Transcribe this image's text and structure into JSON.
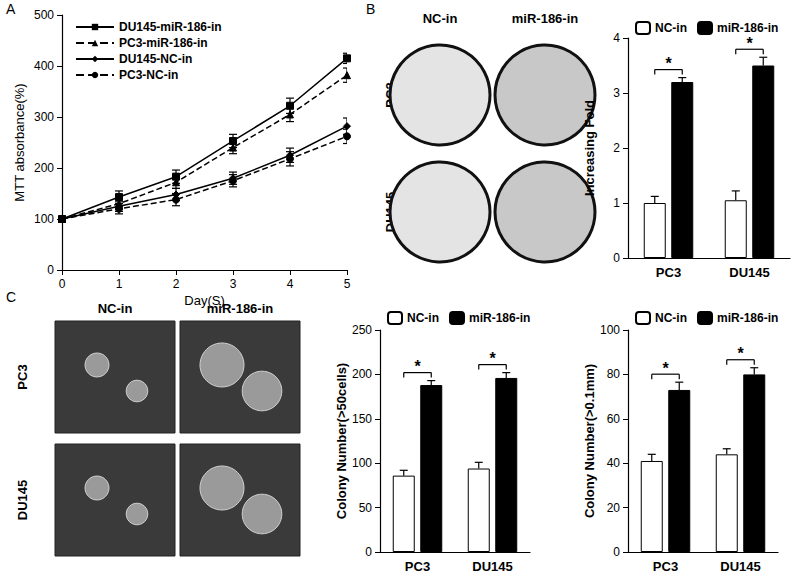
{
  "panel_labels": [
    "A",
    "B",
    "C"
  ],
  "image_panels": [
    {
      "column_labels": [
        "NC-in",
        "miR-186-in"
      ],
      "row_labels": [
        "PC3",
        "DU145"
      ]
    },
    {
      "column_labels": [
        "NC-in",
        "miR-186-in"
      ],
      "row_labels": [
        "PC3",
        "DU145"
      ]
    }
  ],
  "chart_data": [
    {
      "type": "line",
      "x_label": "Day(S)",
      "y_label": "MTT absorbance(%)",
      "x": [
        0,
        1,
        2,
        3,
        4,
        5
      ],
      "xlim": [
        0,
        5
      ],
      "xticks": [
        0,
        1,
        2,
        3,
        4,
        5
      ],
      "ylim": [
        0,
        500
      ],
      "yticks": [
        0,
        100,
        200,
        300,
        400,
        500
      ],
      "grid": false,
      "legend": "upper left",
      "series": [
        {
          "name": "DU145-miR-186-in",
          "color": "#000000",
          "marker": "square",
          "line_style": "solid",
          "values": [
            100,
            143,
            183,
            253,
            322,
            415
          ],
          "errors": [
            5,
            12,
            13,
            13,
            15,
            10
          ]
        },
        {
          "name": "PC3-miR-186-in",
          "color": "#000000",
          "marker": "triangle",
          "line_style": "dashed",
          "values": [
            100,
            130,
            172,
            240,
            305,
            382
          ],
          "errors": [
            5,
            10,
            12,
            12,
            14,
            14
          ]
        },
        {
          "name": "DU145-NC-in",
          "color": "#000000",
          "marker": "diamond",
          "line_style": "solid",
          "values": [
            100,
            125,
            148,
            180,
            225,
            282
          ],
          "errors": [
            5,
            10,
            12,
            12,
            14,
            16
          ]
        },
        {
          "name": "PC3-NC-in",
          "color": "#000000",
          "marker": "circle",
          "line_style": "dashed",
          "values": [
            100,
            120,
            138,
            175,
            218,
            262
          ],
          "errors": [
            5,
            10,
            12,
            12,
            14,
            14
          ]
        }
      ]
    },
    {
      "type": "bar",
      "y_label": "Increasing Fold",
      "categories": [
        "PC3",
        "DU145"
      ],
      "ylim": [
        0,
        4
      ],
      "yticks": [
        0,
        1,
        2,
        3,
        4
      ],
      "grid": false,
      "legend": "top",
      "significance": [
        "*",
        "*"
      ],
      "series": [
        {
          "name": "NC-in",
          "color": "#ffffff",
          "values": [
            1.0,
            1.05
          ],
          "errors": [
            0.12,
            0.17
          ]
        },
        {
          "name": "miR-186-in",
          "color": "#000000",
          "values": [
            3.2,
            3.5
          ],
          "errors": [
            0.08,
            0.15
          ]
        }
      ]
    },
    {
      "type": "bar",
      "y_label": "Colony Number(>50cells)",
      "categories": [
        "PC3",
        "DU145"
      ],
      "ylim": [
        0,
        250
      ],
      "yticks": [
        0,
        50,
        100,
        150,
        200,
        250
      ],
      "grid": false,
      "legend": "top",
      "significance": [
        "*",
        "*"
      ],
      "series": [
        {
          "name": "NC-in",
          "color": "#ffffff",
          "values": [
            86,
            94
          ],
          "errors": [
            6,
            7
          ]
        },
        {
          "name": "miR-186-in",
          "color": "#000000",
          "values": [
            188,
            196
          ],
          "errors": [
            5,
            6
          ]
        }
      ]
    },
    {
      "type": "bar",
      "y_label": "Colony Number(>0.1mm)",
      "categories": [
        "PC3",
        "DU145"
      ],
      "ylim": [
        0,
        100
      ],
      "yticks": [
        0,
        20,
        40,
        60,
        80,
        100
      ],
      "grid": false,
      "legend": "top",
      "significance": [
        "*",
        "*"
      ],
      "series": [
        {
          "name": "NC-in",
          "color": "#ffffff",
          "values": [
            41,
            44
          ],
          "errors": [
            3,
            2.5
          ]
        },
        {
          "name": "miR-186-in",
          "color": "#000000",
          "values": [
            73,
            80
          ],
          "errors": [
            3.5,
            3
          ]
        }
      ]
    }
  ]
}
